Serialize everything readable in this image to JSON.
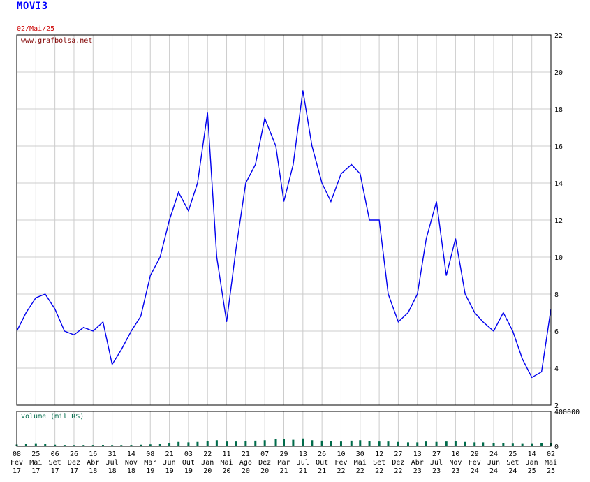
{
  "header": {
    "ticker": "MOVI3",
    "date": "02/Mai/25"
  },
  "watermark": "www.grafbolsa.net",
  "volume_label": "Volume (mil R$)",
  "colors": {
    "price": "#0000ee",
    "volume": "#006b4a",
    "grid": "#cccccc",
    "date": "#cc0000",
    "title": "#0000ff"
  },
  "chart_data": {
    "type": "line",
    "price_axis": {
      "ylim": [
        2,
        22
      ],
      "ticks": [
        "2",
        "4",
        "6",
        "8",
        "10",
        "12",
        "14",
        "16",
        "18",
        "20",
        "22"
      ]
    },
    "volume_axis": {
      "ylim": [
        0,
        400000
      ],
      "ticks": [
        "0",
        "400000"
      ]
    },
    "x_ticks": [
      [
        "08",
        "Fev",
        "17"
      ],
      [
        "25",
        "Mai",
        "17"
      ],
      [
        "06",
        "Set",
        "17"
      ],
      [
        "26",
        "Dez",
        "17"
      ],
      [
        "16",
        "Abr",
        "18"
      ],
      [
        "31",
        "Jul",
        "18"
      ],
      [
        "14",
        "Nov",
        "18"
      ],
      [
        "08",
        "Mar",
        "19"
      ],
      [
        "21",
        "Jun",
        "19"
      ],
      [
        "03",
        "Out",
        "19"
      ],
      [
        "22",
        "Jan",
        "20"
      ],
      [
        "11",
        "Mai",
        "20"
      ],
      [
        "21",
        "Ago",
        "20"
      ],
      [
        "07",
        "Dez",
        "20"
      ],
      [
        "29",
        "Mar",
        "21"
      ],
      [
        "13",
        "Jul",
        "21"
      ],
      [
        "26",
        "Out",
        "21"
      ],
      [
        "10",
        "Fev",
        "22"
      ],
      [
        "30",
        "Mai",
        "22"
      ],
      [
        "12",
        "Set",
        "22"
      ],
      [
        "27",
        "Dez",
        "22"
      ],
      [
        "13",
        "Abr",
        "23"
      ],
      [
        "27",
        "Jul",
        "23"
      ],
      [
        "10",
        "Nov",
        "23"
      ],
      [
        "29",
        "Fev",
        "24"
      ],
      [
        "24",
        "Jun",
        "24"
      ],
      [
        "25",
        "Set",
        "24"
      ],
      [
        "14",
        "Jan",
        "25"
      ],
      [
        "02",
        "Mai",
        "25"
      ]
    ],
    "series": [
      {
        "x": [
          "2017-02-08",
          "2017-04-01",
          "2017-05-25",
          "2017-07-15",
          "2017-09-06",
          "2017-11-01",
          "2017-12-26",
          "2018-02-20",
          "2018-04-16",
          "2018-06-10",
          "2018-07-31",
          "2018-09-20",
          "2018-11-14",
          "2019-01-10",
          "2019-03-08",
          "2019-05-01",
          "2019-06-21",
          "2019-08-10",
          "2019-10-03",
          "2019-11-25",
          "2020-01-22",
          "2020-03-15",
          "2020-05-11",
          "2020-07-01",
          "2020-08-21",
          "2020-10-15",
          "2020-12-07",
          "2021-02-10",
          "2021-03-29",
          "2021-05-20",
          "2021-07-13",
          "2021-09-01",
          "2021-10-26",
          "2021-12-15",
          "2022-02-10",
          "2022-04-10",
          "2022-05-30",
          "2022-07-20",
          "2022-09-12",
          "2022-11-01",
          "2022-12-27",
          "2023-02-20",
          "2023-04-13",
          "2023-06-01",
          "2023-07-27",
          "2023-09-20",
          "2023-11-10",
          "2024-01-05",
          "2024-02-29",
          "2024-04-20",
          "2024-06-24",
          "2024-08-10",
          "2024-09-25",
          "2024-11-20",
          "2025-01-14",
          "2025-03-10",
          "2025-05-02"
        ],
        "y": [
          6.0,
          7.0,
          7.8,
          8.0,
          7.2,
          6.0,
          5.8,
          6.2,
          6.0,
          6.5,
          4.2,
          5.0,
          6.0,
          6.8,
          9.0,
          10.0,
          12.0,
          13.5,
          12.5,
          14.0,
          17.8,
          10.0,
          6.5,
          10.5,
          14.0,
          15.0,
          17.5,
          16.0,
          13.0,
          15.0,
          19.0,
          16.0,
          14.0,
          13.0,
          14.5,
          15.0,
          14.5,
          12.0,
          12.0,
          8.0,
          6.5,
          7.0,
          8.0,
          11.0,
          13.0,
          9.0,
          11.0,
          8.0,
          7.0,
          6.5,
          6.0,
          7.0,
          6.0,
          4.5,
          3.5,
          3.8,
          7.2
        ]
      }
    ],
    "volume": [
      20000,
      30000,
      35000,
      25000,
      18000,
      15000,
      14000,
      15000,
      15000,
      16000,
      14000,
      14000,
      15000,
      18000,
      22000,
      30000,
      40000,
      50000,
      45000,
      50000,
      60000,
      70000,
      55000,
      55000,
      60000,
      65000,
      70000,
      80000,
      85000,
      75000,
      90000,
      70000,
      65000,
      60000,
      55000,
      65000,
      70000,
      60000,
      55000,
      55000,
      50000,
      45000,
      45000,
      55000,
      50000,
      55000,
      60000,
      50000,
      45000,
      45000,
      40000,
      40000,
      38000,
      35000,
      35000,
      40000,
      40000
    ],
    "grid": true
  }
}
